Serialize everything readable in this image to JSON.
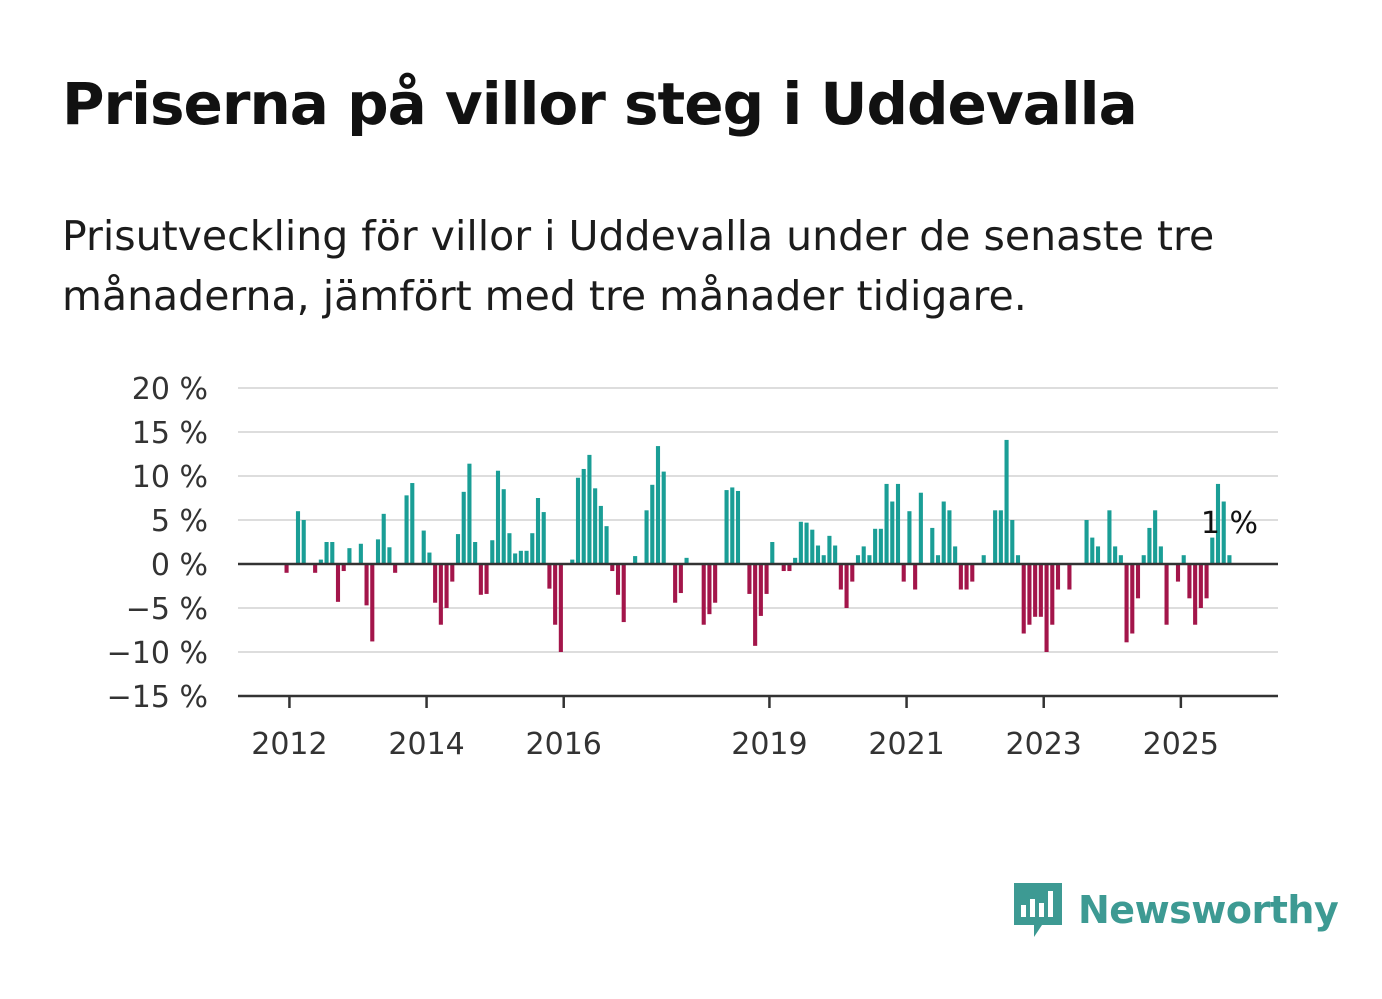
{
  "title": "Priserna på villor steg i Uddevalla",
  "subtitle": "Prisutveckling för villor i Uddevalla under de senaste tre månaderna, jämfört med tre månader tidigare.",
  "brand": {
    "name": "Newsworthy",
    "icon": "newsworthy-logo-icon",
    "color": "#3d9a93"
  },
  "chart_data": {
    "type": "bar",
    "xlabel": "",
    "ylabel": "",
    "ylim": [
      -15,
      20
    ],
    "yticks": [
      20,
      15,
      10,
      5,
      0,
      -5,
      -10,
      -15
    ],
    "ytick_labels": [
      "20 %",
      "15 %",
      "10 %",
      "5 %",
      "0 %",
      "−5 %",
      "−10 %",
      "−15 %"
    ],
    "xticks": [
      "2012",
      "2014",
      "2016",
      "2019",
      "2021",
      "2023",
      "2025"
    ],
    "xlim": [
      "2011-04",
      "2026-06"
    ],
    "grid": true,
    "colors": {
      "positive": "#1a9e96",
      "negative": "#a3154a",
      "grid": "#dddddd",
      "axis": "#333333"
    },
    "last_value_label": "1 %",
    "series": [
      {
        "start": "2011-12",
        "values": [
          -1,
          0,
          6,
          5,
          0,
          -1,
          0.5,
          2.5,
          2.5,
          -4.3,
          -0.8,
          1.8,
          0,
          2.3,
          -4.7,
          -8.8,
          2.8,
          5.7,
          1.9,
          -1,
          0,
          7.8,
          9.2,
          0,
          3.8,
          1.3,
          -4.4,
          -6.9,
          -5,
          -2,
          3.4,
          8.2,
          11.4,
          2.5,
          -3.5,
          -3.4,
          2.7,
          10.6,
          8.5,
          3.5,
          1.2,
          1.5,
          1.5,
          3.5,
          7.5,
          5.9,
          -2.8,
          -6.9,
          -10,
          0,
          0.5,
          9.8,
          10.8,
          12.4,
          8.6,
          6.6,
          4.3,
          -0.8,
          -3.5,
          -6.6,
          0,
          0.9,
          0,
          6.1,
          9,
          13.4,
          10.5,
          0,
          -4.4,
          -3.3,
          0.7,
          0,
          0,
          -6.9,
          -5.7,
          -4.4,
          0,
          8.4,
          8.7,
          8.3,
          0,
          -3.4,
          -9.3,
          -5.9,
          -3.4,
          2.5,
          0,
          -0.8,
          -0.8,
          0.7,
          4.8,
          4.7,
          3.9,
          2.1,
          1,
          3.2,
          2.1,
          -2.9,
          -5,
          -2,
          1,
          2,
          1,
          4,
          4,
          9.1,
          7.1,
          9.1,
          -2,
          6,
          -2.9,
          8.1,
          0,
          4.1,
          1,
          7.1,
          6.1,
          2,
          -2.9,
          -2.9,
          -2,
          0,
          1,
          0,
          6.1,
          6.1,
          14.1,
          5,
          1,
          -7.9,
          -6.9,
          -6,
          -6,
          -10,
          -6.9,
          -2.9,
          0,
          -2.9,
          0,
          0,
          5,
          3,
          2,
          0,
          6.1,
          2,
          1,
          -8.9,
          -7.9,
          -3.9,
          1,
          4.1,
          6.1,
          2,
          -6.9,
          0,
          -2,
          1,
          -3.9,
          -6.9,
          -5,
          -3.9,
          3,
          9.1,
          7.1,
          1
        ]
      }
    ]
  }
}
